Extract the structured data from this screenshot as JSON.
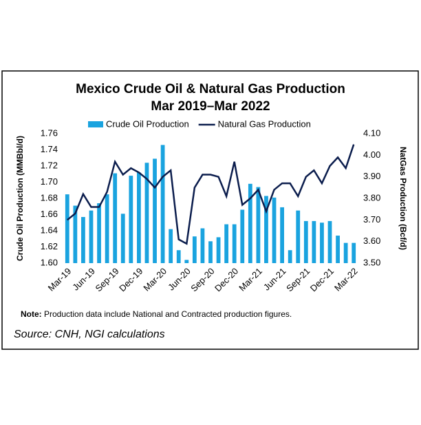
{
  "chart_data": {
    "type": "bar_line",
    "title": "Mexico Crude Oil & Natural Gas Production",
    "subtitle": "Mar 2019–Mar 2022",
    "y_label": "Crude Oil Production (MMBbl/d)",
    "y2_label": "NatGas Production (Bcf/d)",
    "categories": [
      "Mar-19",
      null,
      null,
      "Jun-19",
      null,
      null,
      "Sep-19",
      null,
      null,
      "Dec-19",
      null,
      null,
      "Mar-20",
      null,
      null,
      "Jun-20",
      null,
      null,
      "Sep-20",
      null,
      null,
      "Dec-20",
      null,
      null,
      "Mar-21",
      null,
      null,
      "Jun-21",
      null,
      null,
      "Sep-21",
      null,
      null,
      "Dec-21",
      null,
      null,
      "Mar-22"
    ],
    "series": [
      {
        "name": "Crude Oil Production",
        "type": "bar",
        "color": "#1aa3df",
        "values": [
          1.685,
          1.671,
          1.657,
          1.665,
          1.674,
          1.685,
          1.711,
          1.661,
          1.708,
          1.712,
          1.724,
          1.729,
          1.746,
          1.642,
          1.616,
          1.604,
          1.633,
          1.643,
          1.627,
          1.632,
          1.648,
          1.648,
          1.666,
          1.698,
          1.694,
          1.683,
          1.681,
          1.669,
          1.616,
          1.665,
          1.652,
          1.652,
          1.65,
          1.652,
          1.634,
          1.625,
          1.625
        ]
      },
      {
        "name": "Natural Gas Production",
        "type": "line",
        "axis": "y2",
        "color": "#0b1d4d",
        "values": [
          3.7,
          3.73,
          3.82,
          3.76,
          3.76,
          3.83,
          3.97,
          3.91,
          3.94,
          3.92,
          3.89,
          3.85,
          3.9,
          3.93,
          3.61,
          3.59,
          3.85,
          3.91,
          3.91,
          3.9,
          3.81,
          3.97,
          3.77,
          3.8,
          3.84,
          3.74,
          3.84,
          3.87,
          3.87,
          3.81,
          3.9,
          3.93,
          3.87,
          3.95,
          3.99,
          3.94,
          4.05
        ]
      }
    ],
    "ylim": [
      1.6,
      1.76
    ],
    "yticks": [
      {
        "value": 1.6,
        "label": "1.60"
      },
      {
        "value": 1.62,
        "label": "1.62"
      },
      {
        "value": 1.64,
        "label": "1.64"
      },
      {
        "value": 1.66,
        "label": "1.66"
      },
      {
        "value": 1.68,
        "label": "1.68"
      },
      {
        "value": 1.7,
        "label": "1.70"
      },
      {
        "value": 1.72,
        "label": "1.72"
      },
      {
        "value": 1.74,
        "label": "1.74"
      },
      {
        "value": 1.76,
        "label": "1.76"
      }
    ],
    "y2lim": [
      3.5,
      4.1
    ],
    "y2ticks": [
      {
        "value": 3.5,
        "label": "3.50"
      },
      {
        "value": 3.6,
        "label": "3.60"
      },
      {
        "value": 3.7,
        "label": "3.70"
      },
      {
        "value": 3.8,
        "label": "3.80"
      },
      {
        "value": 3.9,
        "label": "3.90"
      },
      {
        "value": 4.0,
        "label": "4.00"
      },
      {
        "value": 4.1,
        "label": "4.10"
      }
    ],
    "note_label": "Note:",
    "note": "Production data include National and Contracted production figures.",
    "source": "Source: CNH, NGI calculations"
  }
}
